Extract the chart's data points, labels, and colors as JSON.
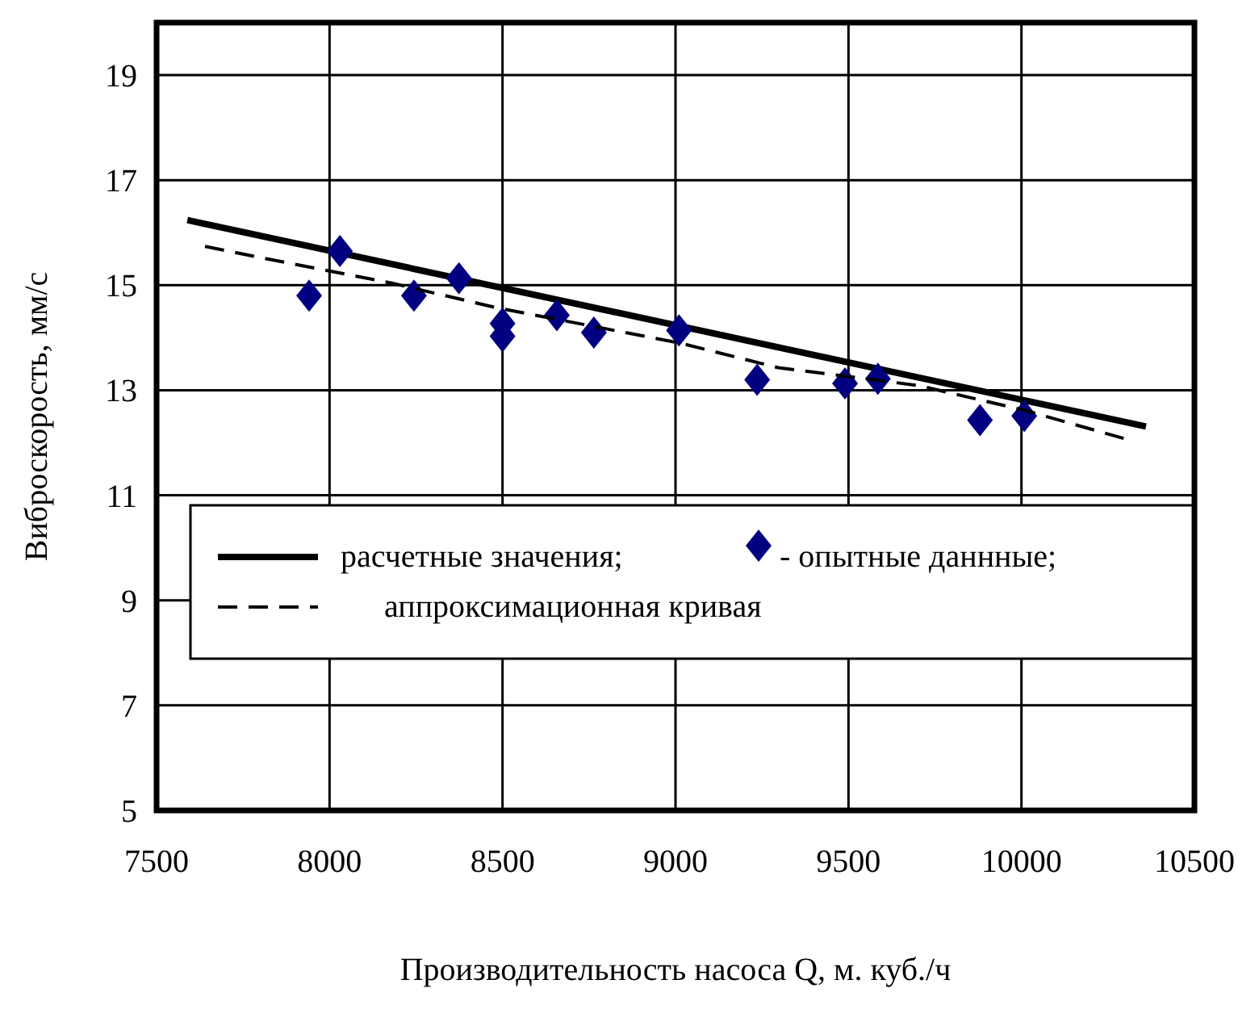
{
  "chart_data": {
    "type": "scatter",
    "xlabel": "Производительность насоса Q, м. куб./ч",
    "ylabel": "Виброскорость, мм/с",
    "xlim": [
      7500,
      10500
    ],
    "xticks": [
      7500,
      8000,
      8500,
      9000,
      9500,
      10000,
      10500
    ],
    "ylim": [
      5,
      20
    ],
    "yticks": [
      5,
      7,
      9,
      11,
      13,
      15,
      17,
      19
    ],
    "grid": true,
    "legend": "center left",
    "series": [
      {
        "name": "расчетные значения;",
        "type": "line",
        "color": "#000000",
        "line_style": "solid",
        "x": [
          7589,
          10360
        ],
        "values": [
          16.24,
          12.31
        ]
      },
      {
        "name": "- опытные даннные;",
        "color": "#000080",
        "marker": "diamond",
        "x": [
          7941,
          8030,
          8244,
          8374,
          8500,
          8500,
          8657,
          8764,
          9010,
          9236,
          9490,
          9585,
          9880,
          10008
        ],
        "values": [
          14.8,
          15.65,
          14.8,
          15.13,
          14.27,
          14.03,
          14.43,
          14.1,
          14.14,
          13.2,
          13.13,
          13.22,
          12.43,
          12.51
        ]
      },
      {
        "name": "аппроксимационная кривая",
        "type": "line",
        "color": "#000000",
        "line_style": "dashed",
        "x": [
          7640,
          7813,
          8180,
          8484,
          9012,
          9297,
          9703,
          10008,
          10313
        ],
        "values": [
          15.74,
          15.51,
          15.04,
          14.57,
          13.9,
          13.43,
          13.09,
          12.62,
          12.05
        ]
      }
    ]
  }
}
